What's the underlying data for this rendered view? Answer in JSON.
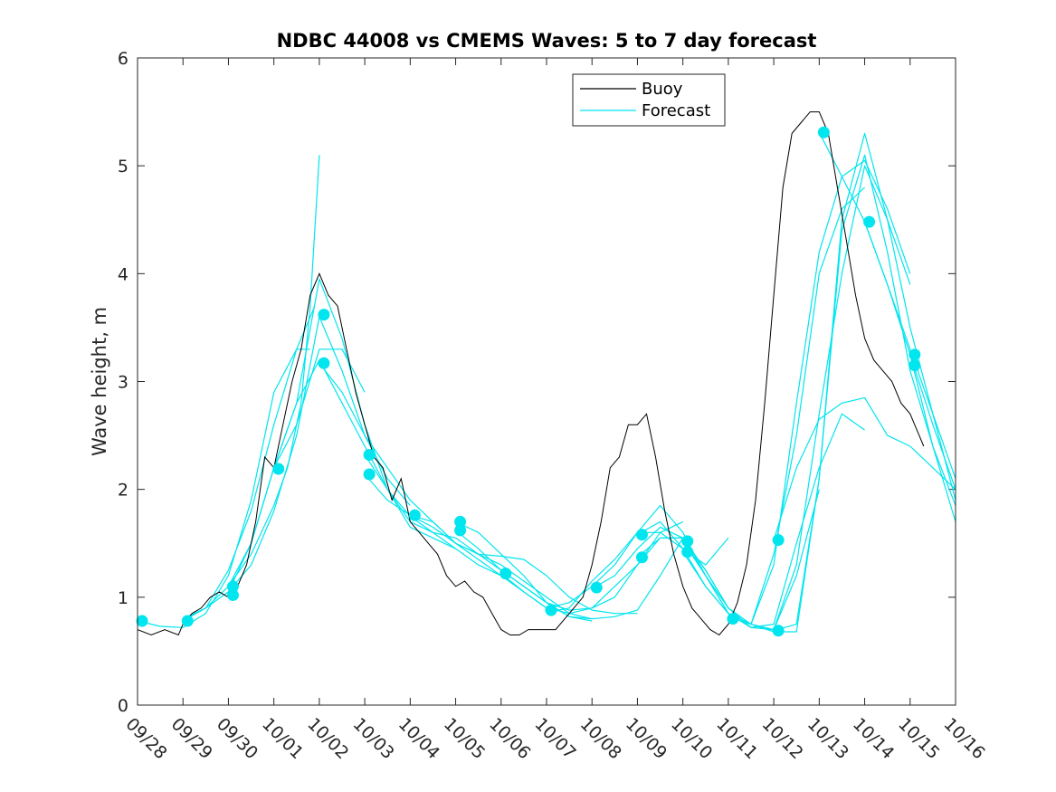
{
  "chart_data": {
    "type": "line",
    "title": "NDBC 44008 vs CMEMS Waves: 5 to 7 day forecast",
    "xlabel": "",
    "ylabel": "Wave height, m",
    "ylim": [
      0,
      6
    ],
    "xlim": [
      0,
      18
    ],
    "x_tick_labels": [
      "09/28",
      "09/29",
      "09/30",
      "10/01",
      "10/02",
      "10/03",
      "10/04",
      "10/05",
      "10/06",
      "10/07",
      "10/08",
      "10/09",
      "10/10",
      "10/11",
      "10/12",
      "10/13",
      "10/14",
      "10/15",
      "10/16"
    ],
    "y_ticks": [
      0,
      1,
      2,
      3,
      4,
      5,
      6
    ],
    "legend": {
      "position": "top-right",
      "entries": [
        "Buoy",
        "Forecast"
      ]
    },
    "colors": {
      "buoy": "#000000",
      "forecast": "#00e5ee",
      "axis": "#262626"
    },
    "buoy": {
      "name": "Buoy",
      "x": [
        0,
        0.3,
        0.6,
        0.9,
        1.0,
        1.2,
        1.4,
        1.6,
        1.8,
        2.0,
        2.2,
        2.4,
        2.6,
        2.8,
        3.0,
        3.2,
        3.4,
        3.6,
        3.8,
        4.0,
        4.2,
        4.4,
        4.6,
        4.8,
        5.0,
        5.2,
        5.4,
        5.6,
        5.8,
        6.0,
        6.2,
        6.4,
        6.6,
        6.8,
        7.0,
        7.2,
        7.4,
        7.6,
        7.8,
        8.0,
        8.2,
        8.4,
        8.6,
        8.8,
        9.0,
        9.2,
        9.4,
        9.6,
        9.8,
        10.0,
        10.2,
        10.4,
        10.6,
        10.8,
        11.0,
        11.2,
        11.4,
        11.6,
        11.8,
        12.0,
        12.2,
        12.4,
        12.6,
        12.8,
        13.0,
        13.2,
        13.4,
        13.6,
        13.8,
        14.0,
        14.2,
        14.4,
        14.6,
        14.8,
        15.0,
        15.2,
        15.4,
        15.6,
        15.8,
        16.0,
        16.2,
        16.4,
        16.6,
        16.8,
        17.0,
        17.2,
        17.3
      ],
      "values": [
        0.7,
        0.65,
        0.7,
        0.65,
        0.75,
        0.85,
        0.9,
        1.0,
        1.05,
        1.0,
        1.1,
        1.3,
        1.7,
        2.3,
        2.2,
        2.6,
        3.0,
        3.3,
        3.8,
        4.0,
        3.8,
        3.7,
        3.3,
        2.9,
        2.6,
        2.3,
        2.2,
        1.9,
        2.1,
        1.7,
        1.6,
        1.5,
        1.4,
        1.2,
        1.1,
        1.15,
        1.05,
        1.0,
        0.85,
        0.7,
        0.65,
        0.65,
        0.7,
        0.7,
        0.7,
        0.7,
        0.8,
        0.9,
        1.0,
        1.3,
        1.7,
        2.2,
        2.3,
        2.6,
        2.6,
        2.7,
        2.3,
        1.8,
        1.4,
        1.1,
        0.9,
        0.8,
        0.7,
        0.65,
        0.75,
        0.95,
        1.3,
        1.9,
        2.8,
        3.8,
        4.8,
        5.3,
        5.4,
        5.5,
        5.5,
        5.3,
        4.8,
        4.3,
        3.8,
        3.4,
        3.2,
        3.1,
        3.0,
        2.8,
        2.7,
        2.5,
        2.4
      ]
    },
    "forecast_series": [
      {
        "name": "Forecast",
        "x": [
          0,
          0.5,
          1.0,
          1.5,
          2.0,
          2.5,
          3.0,
          3.5,
          3.8
        ],
        "values": [
          0.78,
          0.73,
          0.72,
          0.85,
          1.2,
          1.9,
          2.9,
          3.3,
          3.3
        ]
      },
      {
        "name": "Forecast",
        "x": [
          1.0,
          1.5,
          2.0,
          2.5,
          3.0,
          3.5,
          3.9
        ],
        "values": [
          0.8,
          0.9,
          1.25,
          1.8,
          2.6,
          3.3,
          3.7
        ]
      },
      {
        "name": "Forecast",
        "x": [
          1.0,
          1.5,
          2.0,
          2.5,
          3.0,
          3.3,
          3.6,
          3.8,
          4.0
        ],
        "values": [
          0.78,
          0.9,
          1.1,
          1.4,
          1.85,
          2.2,
          2.8,
          3.7,
          5.1
        ]
      },
      {
        "name": "Forecast",
        "x": [
          1.0,
          1.5,
          2.0,
          2.5,
          3.0,
          3.5,
          4.0,
          4.5,
          5.0
        ],
        "values": [
          0.8,
          0.9,
          1.05,
          1.5,
          2.2,
          2.6,
          3.3,
          3.3,
          2.9
        ]
      },
      {
        "name": "Forecast",
        "x": [
          2.0,
          2.5,
          3.0,
          3.5,
          4.0,
          4.5,
          5.0,
          5.5,
          6.0
        ],
        "values": [
          1.05,
          1.3,
          1.8,
          2.5,
          3.6,
          3.1,
          2.5,
          2.1,
          1.85
        ]
      },
      {
        "name": "Forecast",
        "x": [
          2.0,
          2.5,
          3.0,
          3.5,
          4.0,
          4.5,
          5.0,
          5.5,
          6.0,
          6.5,
          7.0
        ],
        "values": [
          1.1,
          1.5,
          2.2,
          2.8,
          3.2,
          2.8,
          2.4,
          2.0,
          1.7,
          1.6,
          1.45
        ]
      },
      {
        "name": "Forecast",
        "x": [
          3.0,
          3.5,
          4.0,
          4.5,
          5.0,
          5.5,
          6.0,
          6.5,
          7.0,
          7.5,
          8.0
        ],
        "values": [
          2.2,
          2.8,
          3.95,
          3.4,
          2.6,
          2.0,
          1.65,
          1.55,
          1.45,
          1.3,
          1.2
        ]
      },
      {
        "name": "Forecast",
        "x": [
          4.0,
          4.5,
          5.0,
          5.5,
          6.0,
          6.5,
          7.0,
          7.5,
          8.0,
          8.5,
          9.0
        ],
        "values": [
          3.17,
          2.9,
          2.5,
          2.2,
          1.9,
          1.7,
          1.5,
          1.35,
          1.2,
          1.05,
          0.9
        ]
      },
      {
        "name": "Forecast",
        "x": [
          5.0,
          5.5,
          6.0,
          6.5,
          7.0,
          7.5,
          8.0,
          8.5,
          9.0,
          9.5,
          10.0
        ],
        "values": [
          2.32,
          2.0,
          1.75,
          1.6,
          1.55,
          1.4,
          1.3,
          1.15,
          1.0,
          0.85,
          0.8
        ]
      },
      {
        "name": "Forecast",
        "x": [
          5.0,
          5.5,
          6.0,
          6.5,
          7.0,
          7.5,
          8.0,
          8.5,
          9.0,
          9.5,
          10.0
        ],
        "values": [
          2.14,
          1.9,
          1.76,
          1.65,
          1.5,
          1.4,
          1.25,
          1.1,
          0.95,
          0.82,
          0.78
        ]
      },
      {
        "name": "Forecast",
        "x": [
          6.0,
          6.5,
          7.0,
          7.5,
          8.0,
          8.5,
          9.0,
          9.5,
          10.0,
          10.5,
          11.0
        ],
        "values": [
          1.76,
          1.7,
          1.5,
          1.4,
          1.38,
          1.35,
          1.2,
          1.0,
          0.88,
          0.85,
          0.85
        ]
      },
      {
        "name": "Forecast",
        "x": [
          7.0,
          7.5,
          8.0,
          8.5,
          9.0,
          9.5,
          10.0,
          10.5,
          11.0,
          11.5,
          12.0
        ],
        "values": [
          1.7,
          1.6,
          1.4,
          1.2,
          0.95,
          0.82,
          0.8,
          0.82,
          0.88,
          1.2,
          1.55
        ]
      },
      {
        "name": "Forecast",
        "x": [
          7.0,
          7.5,
          8.0,
          8.5,
          9.0,
          9.5,
          10.0,
          10.5,
          11.0,
          11.5,
          12.0
        ],
        "values": [
          1.62,
          1.45,
          1.25,
          1.1,
          0.95,
          0.88,
          0.9,
          1.0,
          1.3,
          1.6,
          1.7
        ]
      },
      {
        "name": "Forecast",
        "x": [
          8.0,
          8.5,
          9.0,
          9.5,
          10.0,
          10.5,
          11.0,
          11.5,
          12.0,
          12.5,
          13.0
        ],
        "values": [
          1.22,
          1.05,
          0.9,
          0.85,
          0.9,
          1.1,
          1.3,
          1.55,
          1.55,
          1.25,
          0.9
        ]
      },
      {
        "name": "Forecast",
        "x": [
          9.0,
          9.5,
          10.0,
          10.5,
          11.0,
          11.5,
          12.0,
          12.5,
          13.0
        ],
        "values": [
          0.9,
          0.95,
          1.1,
          1.3,
          1.6,
          1.6,
          1.45,
          1.3,
          1.55
        ]
      },
      {
        "name": "Forecast",
        "x": [
          9.0,
          9.5,
          10.0,
          10.5,
          11.0,
          11.5,
          12.0,
          12.5,
          13.0,
          13.5,
          14.0
        ],
        "values": [
          0.86,
          0.9,
          1.15,
          1.35,
          1.6,
          1.85,
          1.6,
          1.2,
          0.85,
          0.75,
          0.7
        ]
      },
      {
        "name": "Forecast",
        "x": [
          10.0,
          10.5,
          11.0,
          11.5,
          12.0,
          12.5,
          13.0,
          13.5,
          14.0,
          14.5,
          15.0
        ],
        "values": [
          1.08,
          1.2,
          1.45,
          1.65,
          1.55,
          1.2,
          0.85,
          0.72,
          0.7,
          1.2,
          2.0
        ]
      },
      {
        "name": "Forecast",
        "x": [
          11.0,
          11.5,
          12.0,
          12.5,
          13.0,
          13.5,
          14.0,
          14.5,
          15.0,
          15.5,
          16.0
        ],
        "values": [
          1.37,
          1.55,
          1.55,
          1.25,
          0.9,
          0.72,
          0.75,
          1.5,
          2.2,
          2.7,
          2.55
        ]
      },
      {
        "name": "Forecast",
        "x": [
          11.0,
          11.5,
          12.0,
          12.5,
          13.0,
          13.5,
          14.0,
          14.5,
          15.0,
          15.5,
          16.0
        ],
        "values": [
          1.58,
          1.7,
          1.45,
          1.1,
          0.85,
          0.75,
          1.4,
          2.5,
          4.0,
          4.6,
          4.8
        ]
      },
      {
        "name": "Forecast",
        "x": [
          12.0,
          12.5,
          13.0,
          13.5,
          14.0,
          14.5,
          15.0,
          15.5,
          16.0,
          16.5,
          17.0
        ],
        "values": [
          1.52,
          1.2,
          0.9,
          0.75,
          1.3,
          2.8,
          4.2,
          4.9,
          5.05,
          4.6,
          4.0
        ]
      },
      {
        "name": "Forecast",
        "x": [
          12.0,
          12.5,
          13.0,
          13.5,
          14.0,
          14.5,
          15.0,
          15.5,
          16.0,
          16.5,
          17.0
        ],
        "values": [
          1.42,
          1.1,
          0.85,
          0.72,
          0.7,
          1.3,
          2.7,
          4.0,
          5.0,
          4.5,
          3.9
        ]
      },
      {
        "name": "Forecast",
        "x": [
          13.0,
          13.5,
          14.0,
          14.5,
          15.0,
          15.5,
          16.0,
          16.5,
          17.0,
          17.5,
          18.0
        ],
        "values": [
          0.82,
          0.75,
          0.68,
          0.68,
          2.1,
          4.4,
          5.1,
          4.2,
          3.1,
          2.4,
          1.85
        ]
      },
      {
        "name": "Forecast",
        "x": [
          14.0,
          14.5,
          15.0,
          15.5,
          16.0,
          16.5,
          17.0,
          17.5,
          18.0
        ],
        "values": [
          1.53,
          2.2,
          2.65,
          2.8,
          2.85,
          2.5,
          2.4,
          2.2,
          2.0
        ]
      },
      {
        "name": "Forecast",
        "x": [
          14.0,
          14.5,
          15.0,
          15.5,
          16.0,
          16.5,
          17.0,
          17.5,
          18.0
        ],
        "values": [
          0.69,
          0.75,
          2.1,
          4.5,
          5.3,
          4.5,
          3.5,
          2.7,
          1.9
        ]
      },
      {
        "name": "Forecast",
        "x": [
          15.0,
          15.5,
          16.0,
          16.5,
          17.0,
          17.5,
          18.0
        ],
        "values": [
          5.31,
          4.9,
          4.48,
          3.9,
          3.3,
          2.7,
          2.1
        ]
      },
      {
        "name": "Forecast",
        "x": [
          16.0,
          16.5,
          17.0,
          17.5,
          18.0
        ],
        "values": [
          4.48,
          3.9,
          3.25,
          2.6,
          2.0
        ]
      },
      {
        "name": "Forecast",
        "x": [
          17.0,
          17.5,
          18.0
        ],
        "values": [
          3.25,
          2.4,
          1.7
        ]
      }
    ],
    "forecast_markers": {
      "x": [
        0.1,
        1.1,
        2.1,
        2.1,
        3.1,
        4.1,
        4.1,
        5.1,
        5.1,
        6.1,
        7.1,
        7.1,
        8.1,
        9.1,
        10.1,
        11.1,
        11.1,
        12.1,
        12.1,
        13.1,
        14.1,
        14.1,
        15.1,
        16.1,
        17.1,
        17.1
      ],
      "values": [
        0.78,
        0.78,
        1.1,
        1.02,
        2.19,
        3.62,
        3.17,
        2.32,
        2.14,
        1.76,
        1.7,
        1.62,
        1.22,
        0.88,
        1.09,
        1.58,
        1.37,
        1.52,
        1.42,
        0.8,
        1.53,
        0.69,
        5.31,
        4.48,
        3.25,
        3.15
      ]
    }
  }
}
